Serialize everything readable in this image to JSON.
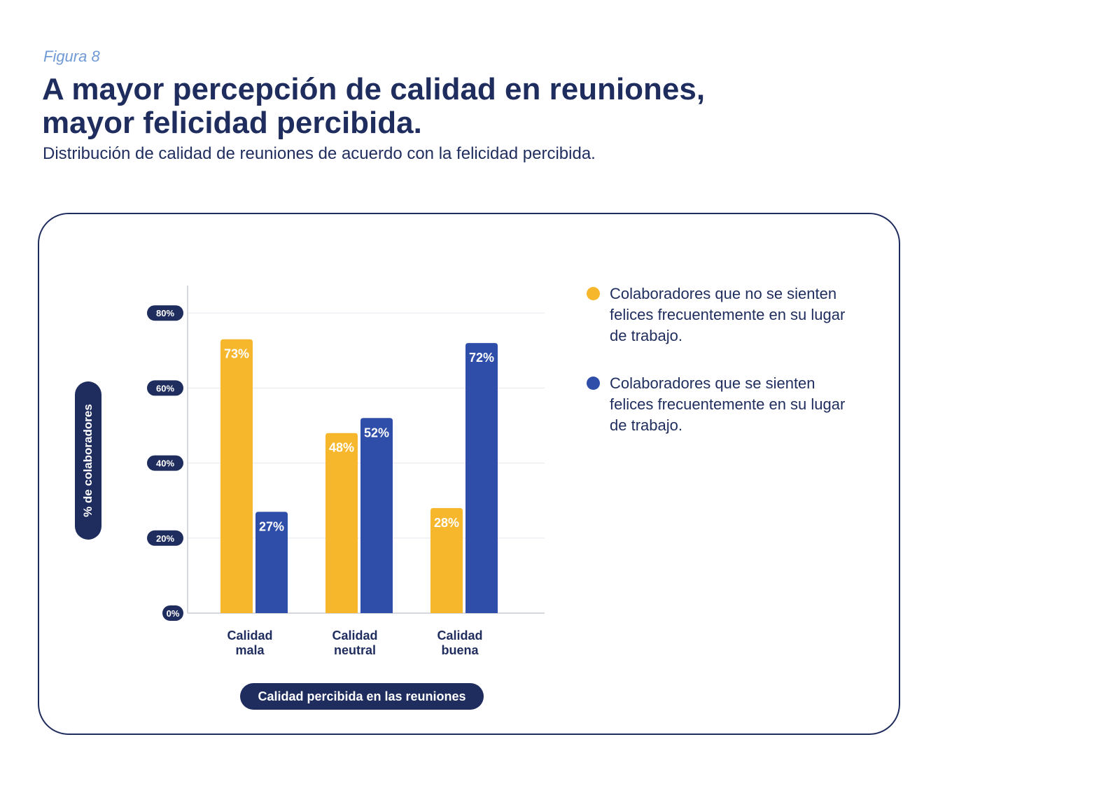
{
  "header": {
    "figure_label": "Figura 8",
    "title_line1": "A mayor percepción de calidad en reuniones,",
    "title_line2": "mayor felicidad percibida.",
    "subtitle": "Distribución de calidad de reuniones de acuerdo con la felicidad percibida."
  },
  "colors": {
    "navy": "#1f2d5e",
    "yellow": "#f7b72d",
    "blue": "#2f4ea9",
    "grid": "#e6e8ee"
  },
  "chart_data": {
    "type": "bar",
    "ylabel": "% de colaboradores",
    "xlabel": "Calidad percibida en las reuniones",
    "categories": [
      [
        "Calidad",
        "mala"
      ],
      [
        "Calidad",
        "neutral"
      ],
      [
        "Calidad",
        "buena"
      ]
    ],
    "ylim": [
      0,
      87
    ],
    "yticks": [
      0,
      20,
      40,
      60,
      80
    ],
    "tick_suffix": "%",
    "value_suffix": "%",
    "grid": true,
    "legend_position": "right",
    "series": [
      {
        "name": "Colaboradores que no se sienten felices frecuentemente en su lugar de trabajo.",
        "legend_lines": [
          "Colaboradores que no se sienten",
          "felices frecuentemente en su lugar",
          "de trabajo."
        ],
        "color": "#f7b72d",
        "values": [
          73,
          48,
          28
        ]
      },
      {
        "name": "Colaboradores que se sienten felices frecuentemente en su lugar de trabajo.",
        "legend_lines": [
          "Colaboradores que se sienten",
          "felices frecuentemente en su lugar",
          "de trabajo."
        ],
        "color": "#2f4ea9",
        "values": [
          27,
          52,
          72
        ]
      }
    ]
  }
}
